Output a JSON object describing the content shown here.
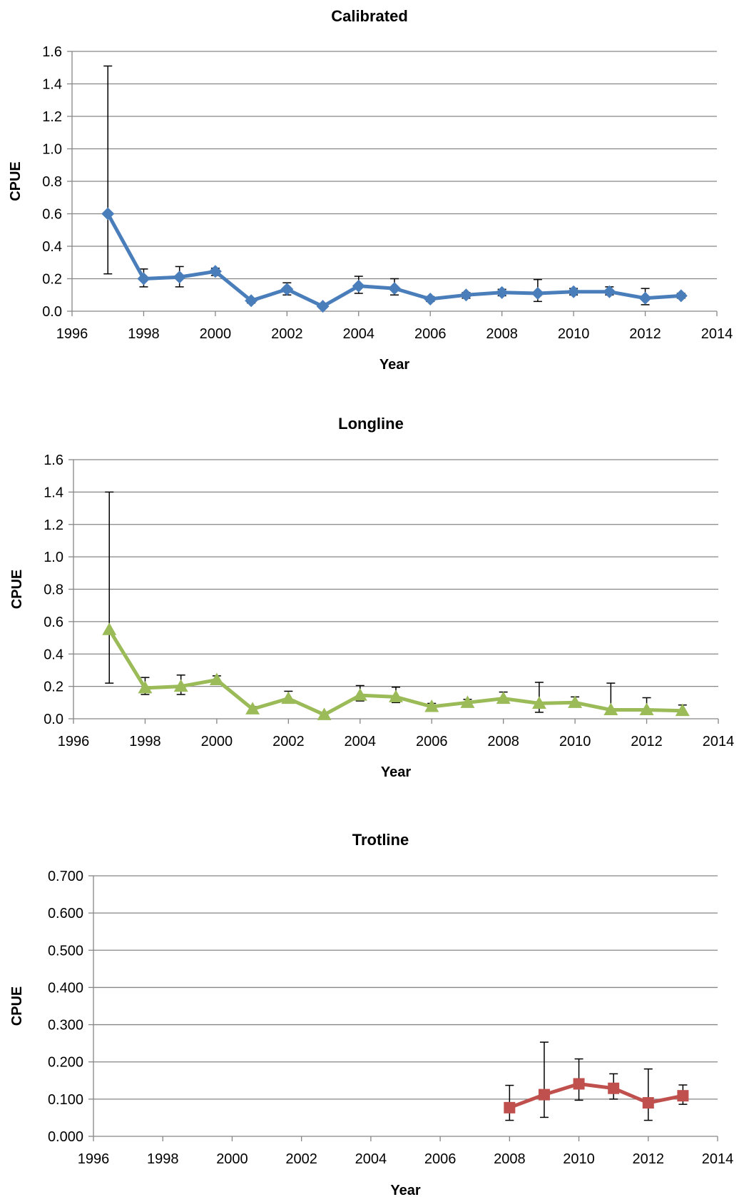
{
  "chart_data": [
    {
      "type": "line",
      "title": "Calibrated",
      "xlabel": "Year",
      "ylabel": "CPUE",
      "xlim": [
        1996,
        2014
      ],
      "ylim": [
        0,
        1.6
      ],
      "xticks": [
        "1996",
        "1998",
        "2000",
        "2002",
        "2004",
        "2006",
        "2008",
        "2010",
        "2012",
        "2014"
      ],
      "yticks": [
        "0.0",
        "0.2",
        "0.4",
        "0.6",
        "0.8",
        "1.0",
        "1.2",
        "1.4",
        "1.6"
      ],
      "grid": true,
      "marker": "diamond",
      "color": "#4a7ebb",
      "series": [
        {
          "x": [
            1997,
            1998,
            1999,
            2000,
            2001,
            2002,
            2003,
            2004,
            2005,
            2006,
            2007,
            2008,
            2009,
            2010,
            2011,
            2012,
            2013
          ],
          "y": [
            0.6,
            0.2,
            0.21,
            0.245,
            0.065,
            0.135,
            0.03,
            0.155,
            0.14,
            0.075,
            0.1,
            0.115,
            0.11,
            0.12,
            0.12,
            0.08,
            0.095
          ],
          "err_low": [
            0.23,
            0.15,
            0.15,
            0.22,
            0.05,
            0.1,
            0.02,
            0.11,
            0.1,
            0.06,
            0.08,
            0.095,
            0.06,
            0.1,
            0.1,
            0.04,
            0.08
          ],
          "err_high": [
            1.51,
            0.26,
            0.275,
            0.265,
            0.08,
            0.175,
            0.04,
            0.215,
            0.2,
            0.09,
            0.115,
            0.135,
            0.195,
            0.14,
            0.15,
            0.14,
            0.11
          ]
        }
      ]
    },
    {
      "type": "line",
      "title": "Longline",
      "xlabel": "Year",
      "ylabel": "CPUE",
      "xlim": [
        1996,
        2014
      ],
      "ylim": [
        0,
        1.6
      ],
      "xticks": [
        "1996",
        "1998",
        "2000",
        "2002",
        "2004",
        "2006",
        "2008",
        "2010",
        "2012",
        "2014"
      ],
      "yticks": [
        "0.0",
        "0.2",
        "0.4",
        "0.6",
        "0.8",
        "1.0",
        "1.2",
        "1.4",
        "1.6"
      ],
      "grid": true,
      "marker": "triangle",
      "color": "#9bbb59",
      "series": [
        {
          "x": [
            1997,
            1998,
            1999,
            2000,
            2001,
            2002,
            2003,
            2004,
            2005,
            2006,
            2007,
            2008,
            2009,
            2010,
            2011,
            2012,
            2013
          ],
          "y": [
            0.55,
            0.19,
            0.2,
            0.24,
            0.06,
            0.125,
            0.025,
            0.145,
            0.135,
            0.075,
            0.1,
            0.125,
            0.095,
            0.1,
            0.055,
            0.055,
            0.05
          ],
          "err_low": [
            0.22,
            0.15,
            0.15,
            0.22,
            0.05,
            0.1,
            0.02,
            0.11,
            0.1,
            0.06,
            0.085,
            0.105,
            0.04,
            0.085,
            0.04,
            0.04,
            0.04
          ],
          "err_high": [
            1.4,
            0.255,
            0.27,
            0.265,
            0.075,
            0.17,
            0.035,
            0.205,
            0.195,
            0.095,
            0.12,
            0.165,
            0.225,
            0.135,
            0.22,
            0.13,
            0.085
          ]
        }
      ]
    },
    {
      "type": "line",
      "title": "Trotline",
      "xlabel": "Year",
      "ylabel": "CPUE",
      "xlim": [
        1996,
        2014
      ],
      "ylim": [
        0,
        0.7
      ],
      "xticks": [
        "1996",
        "1998",
        "2000",
        "2002",
        "2004",
        "2006",
        "2008",
        "2010",
        "2012",
        "2014"
      ],
      "yticks": [
        "0.000",
        "0.100",
        "0.200",
        "0.300",
        "0.400",
        "0.500",
        "0.600",
        "0.700"
      ],
      "grid": true,
      "marker": "square",
      "color": "#c0504d",
      "series": [
        {
          "x": [
            2008,
            2009,
            2010,
            2011,
            2012,
            2013
          ],
          "y": [
            0.077,
            0.112,
            0.141,
            0.129,
            0.09,
            0.109
          ],
          "err_low": [
            0.043,
            0.051,
            0.097,
            0.1,
            0.043,
            0.086
          ],
          "err_high": [
            0.137,
            0.253,
            0.208,
            0.168,
            0.181,
            0.138
          ]
        }
      ]
    }
  ]
}
